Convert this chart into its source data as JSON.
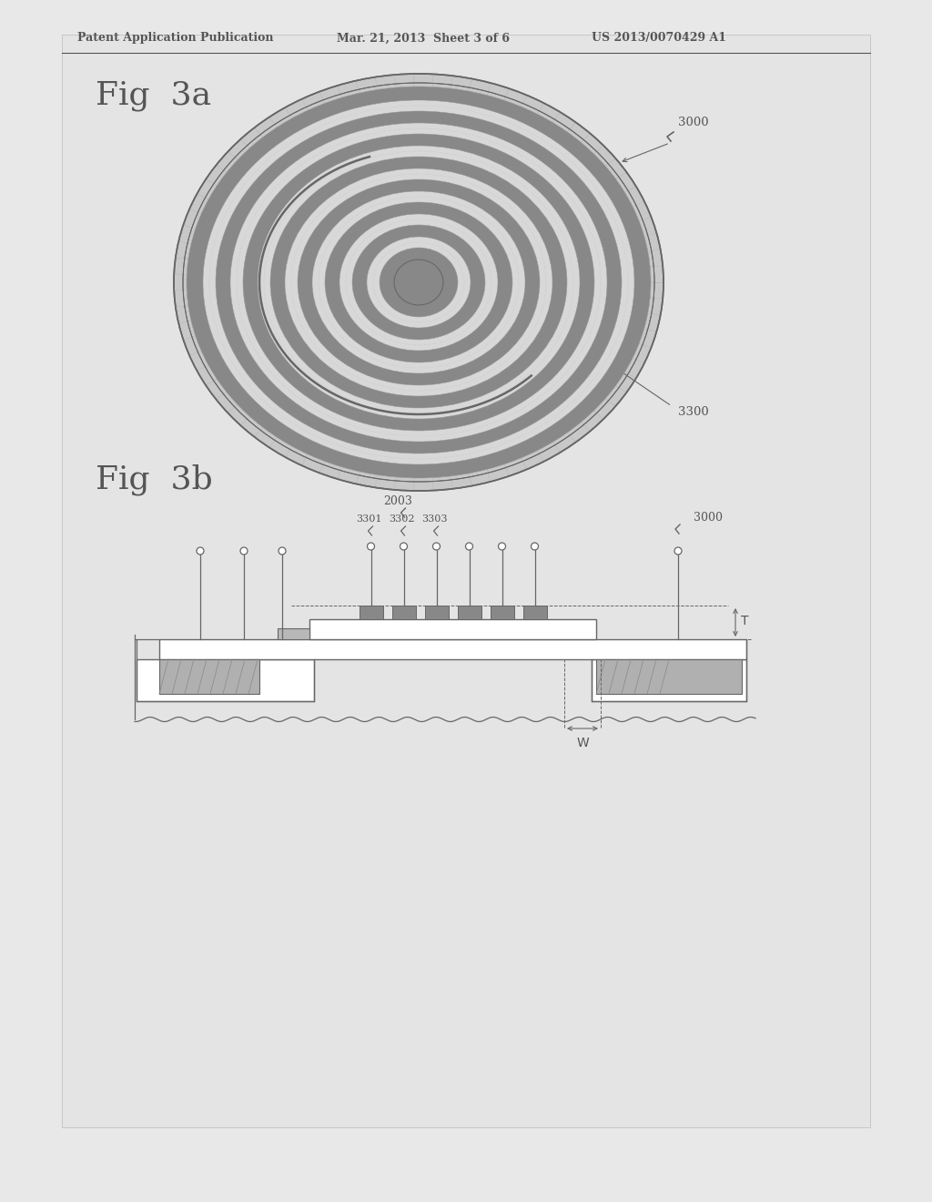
{
  "bg_color": "#e8e8e8",
  "inner_bg": "#e8e8e8",
  "header_text": "Patent Application Publication",
  "header_date": "Mar. 21, 2013  Sheet 3 of 6",
  "header_patent": "US 2013/0070429 A1",
  "fig3a_label": "Fig  3a",
  "fig3b_label": "Fig  3b",
  "label_3000_top": "3000",
  "label_3300": "3300",
  "label_2003": "2003",
  "label_3301": "3301",
  "label_3302": "3302",
  "label_3303": "3303",
  "label_3000_bot": "3000",
  "label_T": "T",
  "label_W": "W",
  "dark_gray": "#888888",
  "medium_gray": "#aaaaaa",
  "light_gray": "#cccccc",
  "hatch_gray": "#999999",
  "text_color": "#555555",
  "line_color": "#666666",
  "white": "#ffffff",
  "page_color": "#e8e8e8"
}
